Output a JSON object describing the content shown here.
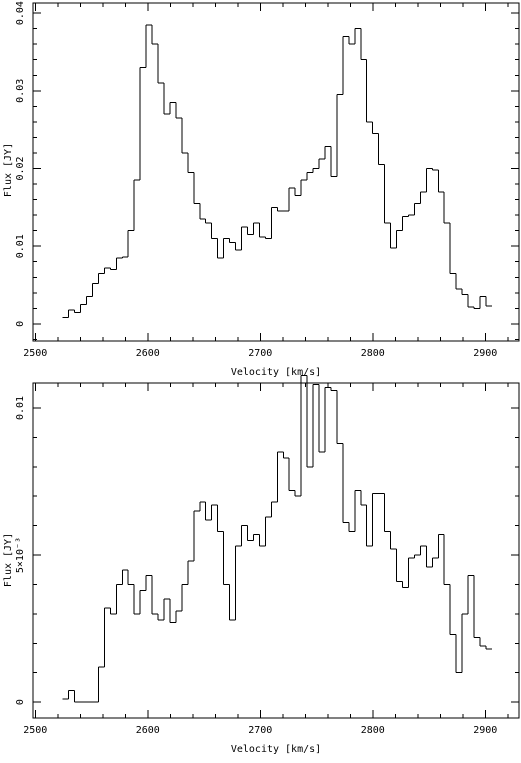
{
  "chart_data": [
    {
      "type": "step",
      "xlabel": "Velocity [km/s]",
      "ylabel": "Flux [JY]",
      "color": "#000000",
      "x": [
        2527,
        2532.3,
        2537.6,
        2542.9,
        2548.2,
        2553.5,
        2558.8,
        2564.1,
        2569.4,
        2574.7,
        2580,
        2585.3,
        2590.6,
        2595.9,
        2601.2,
        2606.5,
        2611.8,
        2617.1,
        2622.4,
        2627.7,
        2633,
        2638.3,
        2643.6,
        2648.9,
        2654.2,
        2659.5,
        2664.8,
        2670.1,
        2675.4,
        2680.7,
        2686,
        2691.3,
        2696.6,
        2701.9,
        2707.2,
        2712.5,
        2717.8,
        2723.1,
        2728.4,
        2733.7,
        2739,
        2744.3,
        2749.6,
        2754.9,
        2760.2,
        2765.5,
        2770.8,
        2776.1,
        2781.4,
        2786.7,
        2792,
        2797.3,
        2802.6,
        2807.9,
        2813.2,
        2818.5,
        2823.8,
        2829.1,
        2834.4,
        2839.7,
        2845,
        2850.3,
        2855.6,
        2860.9,
        2866.2,
        2871.5,
        2876.8,
        2882.1,
        2887.4,
        2892.7,
        2898,
        2903.3
      ],
      "values": [
        0.0008,
        0.0018,
        0.0015,
        0.0025,
        0.0035,
        0.0052,
        0.0065,
        0.0072,
        0.007,
        0.0085,
        0.0086,
        0.012,
        0.0185,
        0.033,
        0.0385,
        0.036,
        0.031,
        0.027,
        0.0285,
        0.0265,
        0.022,
        0.0195,
        0.0155,
        0.0135,
        0.013,
        0.011,
        0.0085,
        0.011,
        0.0105,
        0.0095,
        0.0125,
        0.0115,
        0.013,
        0.0112,
        0.011,
        0.015,
        0.0145,
        0.0145,
        0.0175,
        0.0165,
        0.0185,
        0.0195,
        0.02,
        0.0212,
        0.0228,
        0.019,
        0.0295,
        0.037,
        0.036,
        0.038,
        0.034,
        0.026,
        0.0245,
        0.0205,
        0.013,
        0.0098,
        0.012,
        0.0138,
        0.014,
        0.0155,
        0.017,
        0.02,
        0.0198,
        0.017,
        0.013,
        0.0065,
        0.0045,
        0.0038,
        0.0022,
        0.002,
        0.0035,
        0.0023
      ],
      "xlim": [
        2498,
        2930
      ],
      "xticks": [
        2500,
        2600,
        2700,
        2800,
        2900
      ],
      "ylim": [
        -0.0022,
        0.0413
      ],
      "yticks": [
        0,
        0.01,
        0.02,
        0.03,
        0.04
      ]
    },
    {
      "type": "step",
      "xlabel": "Velocity [km/s]",
      "ylabel": "Flux [JY]",
      "color": "#000000",
      "x": [
        2527,
        2532.3,
        2537.6,
        2542.9,
        2548.2,
        2553.5,
        2558.8,
        2564.1,
        2569.4,
        2574.7,
        2580,
        2585.3,
        2590.6,
        2595.9,
        2601.2,
        2606.5,
        2611.8,
        2617.1,
        2622.4,
        2627.7,
        2633,
        2638.3,
        2643.6,
        2648.9,
        2654.2,
        2659.5,
        2664.8,
        2670.1,
        2675.4,
        2680.7,
        2686,
        2691.3,
        2696.6,
        2701.9,
        2707.2,
        2712.5,
        2717.8,
        2723.1,
        2728.4,
        2733.7,
        2739,
        2744.3,
        2749.6,
        2754.9,
        2760.2,
        2765.5,
        2770.8,
        2776.1,
        2781.4,
        2786.7,
        2792,
        2797.3,
        2802.6,
        2807.9,
        2813.2,
        2818.5,
        2823.8,
        2829.1,
        2834.4,
        2839.7,
        2845,
        2850.3,
        2855.6,
        2860.9,
        2866.2,
        2871.5,
        2876.8,
        2882.1,
        2887.4,
        2892.7,
        2898,
        2903.3
      ],
      "values": [
        0.0001,
        0.0004,
        0,
        0,
        0,
        0,
        0.0012,
        0.0032,
        0.003,
        0.004,
        0.0045,
        0.004,
        0.003,
        0.0038,
        0.0043,
        0.003,
        0.0028,
        0.0035,
        0.0027,
        0.0031,
        0.004,
        0.0048,
        0.0065,
        0.0068,
        0.0062,
        0.0067,
        0.0058,
        0.004,
        0.0028,
        0.0053,
        0.006,
        0.0055,
        0.0057,
        0.0053,
        0.0063,
        0.0068,
        0.0085,
        0.0083,
        0.0072,
        0.007,
        0.0111,
        0.008,
        0.0108,
        0.0085,
        0.0107,
        0.0106,
        0.0088,
        0.0061,
        0.0058,
        0.0072,
        0.0067,
        0.0053,
        0.0071,
        0.0071,
        0.0058,
        0.0052,
        0.0041,
        0.0039,
        0.0049,
        0.005,
        0.0053,
        0.0046,
        0.0049,
        0.0057,
        0.004,
        0.0023,
        0.001,
        0.003,
        0.0043,
        0.0022,
        0.0019,
        0.0018
      ],
      "xlim": [
        2498,
        2930
      ],
      "xticks": [
        2500,
        2600,
        2700,
        2800,
        2900
      ],
      "ylim": [
        -0.00054,
        0.01085
      ],
      "yticks": [
        0,
        {
          "value": 0.005,
          "label": "5×10⁻³"
        },
        0.01
      ]
    }
  ]
}
